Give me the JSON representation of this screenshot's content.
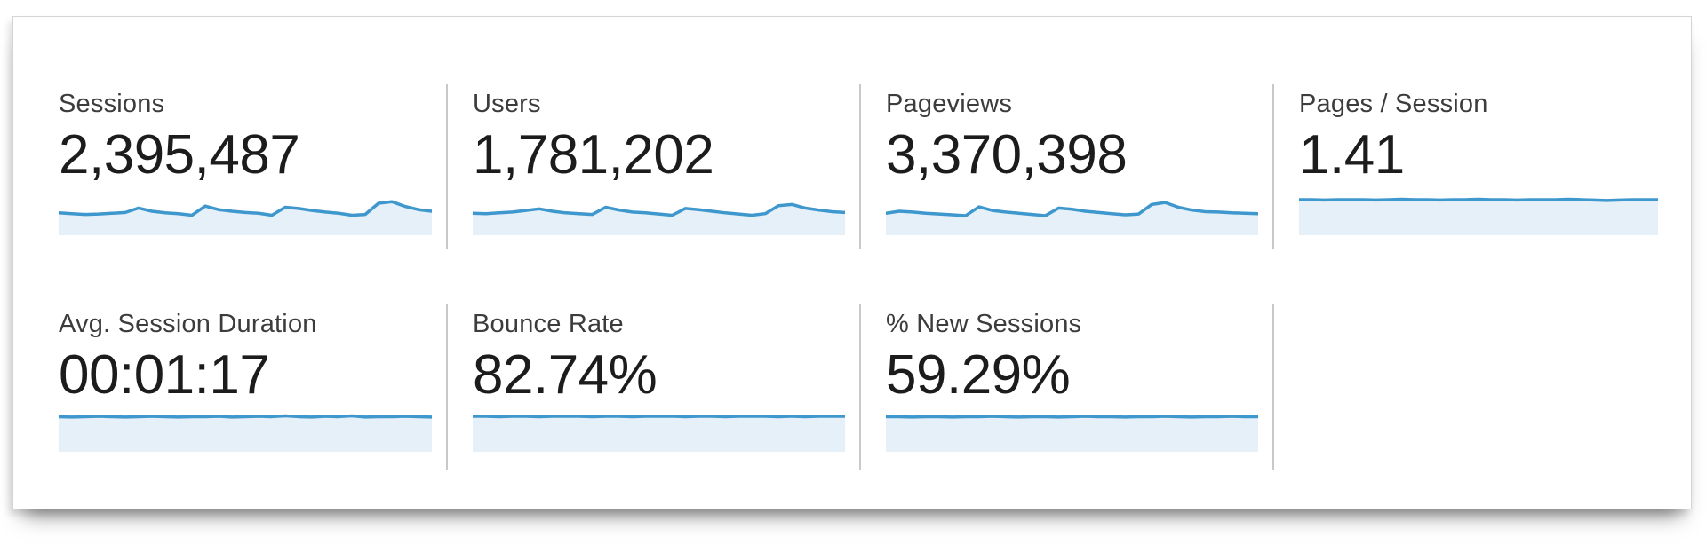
{
  "colors": {
    "spark_line": "#3e97cd",
    "spark_fill": "#e5f0f9",
    "divider": "#c7c9cb",
    "label_text": "#3c3c3c",
    "value_text": "#1c1c1c",
    "panel_background": "#ffffff",
    "panel_border": "#d4d4d4"
  },
  "metrics": [
    {
      "label": "Sessions",
      "value": "2,395,487",
      "spark": [
        56,
        54,
        52,
        53,
        55,
        57,
        68,
        60,
        56,
        54,
        50,
        73,
        64,
        60,
        57,
        55,
        50,
        70,
        67,
        62,
        58,
        55,
        50,
        52,
        80,
        84,
        72,
        64,
        60
      ]
    },
    {
      "label": "Users",
      "value": "1,781,202",
      "spark": [
        55,
        54,
        56,
        58,
        62,
        66,
        60,
        56,
        54,
        52,
        70,
        63,
        58,
        56,
        53,
        50,
        67,
        64,
        60,
        56,
        53,
        50,
        54,
        74,
        77,
        68,
        63,
        59,
        57
      ]
    },
    {
      "label": "Pageviews",
      "value": "3,370,398",
      "spark": [
        55,
        60,
        58,
        55,
        53,
        51,
        49,
        71,
        62,
        58,
        55,
        52,
        49,
        68,
        65,
        60,
        57,
        54,
        51,
        53,
        77,
        82,
        70,
        63,
        59,
        58,
        56,
        55,
        54
      ]
    },
    {
      "label": "Pages / Session",
      "value": "1.41",
      "spark": [
        89,
        89,
        88,
        89,
        89,
        89,
        88,
        89,
        90,
        89,
        89,
        88,
        89,
        89,
        90,
        89,
        89,
        88,
        89,
        89,
        89,
        90,
        89,
        88,
        87,
        88,
        89,
        89,
        89
      ]
    },
    {
      "label": "Avg. Session Duration",
      "value": "00:01:17",
      "spark": [
        86,
        85,
        86,
        87,
        86,
        85,
        86,
        87,
        86,
        85,
        86,
        86,
        87,
        85,
        86,
        87,
        86,
        88,
        86,
        85,
        87,
        86,
        88,
        85,
        86,
        86,
        87,
        86,
        85
      ]
    },
    {
      "label": "Bounce Rate",
      "value": "82.74%",
      "spark": [
        87,
        87,
        86,
        87,
        87,
        86,
        87,
        87,
        87,
        86,
        87,
        87,
        86,
        87,
        87,
        87,
        86,
        87,
        87,
        86,
        87,
        87,
        87,
        86,
        87,
        86,
        87,
        87,
        87
      ]
    },
    {
      "label": "% New Sessions",
      "value": "59.29%",
      "spark": [
        86,
        86,
        85,
        86,
        86,
        85,
        86,
        86,
        87,
        86,
        85,
        86,
        86,
        85,
        86,
        87,
        86,
        86,
        85,
        86,
        86,
        87,
        86,
        85,
        86,
        86,
        87,
        86,
        86
      ]
    }
  ],
  "chart_data": [
    {
      "type": "area",
      "title": "Sessions",
      "headline_value": "2,395,487",
      "xlabel": "",
      "ylabel": "",
      "ylim": [
        0,
        100
      ],
      "grid": false,
      "legend": false,
      "note": "unlabeled sparkline; values are relative estimates 0-100",
      "values": [
        56,
        54,
        52,
        53,
        55,
        57,
        68,
        60,
        56,
        54,
        50,
        73,
        64,
        60,
        57,
        55,
        50,
        70,
        67,
        62,
        58,
        55,
        50,
        52,
        80,
        84,
        72,
        64,
        60
      ]
    },
    {
      "type": "area",
      "title": "Users",
      "headline_value": "1,781,202",
      "xlabel": "",
      "ylabel": "",
      "ylim": [
        0,
        100
      ],
      "grid": false,
      "legend": false,
      "note": "unlabeled sparkline; values are relative estimates 0-100",
      "values": [
        55,
        54,
        56,
        58,
        62,
        66,
        60,
        56,
        54,
        52,
        70,
        63,
        58,
        56,
        53,
        50,
        67,
        64,
        60,
        56,
        53,
        50,
        54,
        74,
        77,
        68,
        63,
        59,
        57
      ]
    },
    {
      "type": "area",
      "title": "Pageviews",
      "headline_value": "3,370,398",
      "xlabel": "",
      "ylabel": "",
      "ylim": [
        0,
        100
      ],
      "grid": false,
      "legend": false,
      "note": "unlabeled sparkline; values are relative estimates 0-100",
      "values": [
        55,
        60,
        58,
        55,
        53,
        51,
        49,
        71,
        62,
        58,
        55,
        52,
        49,
        68,
        65,
        60,
        57,
        54,
        51,
        53,
        77,
        82,
        70,
        63,
        59,
        58,
        56,
        55,
        54
      ]
    },
    {
      "type": "area",
      "title": "Pages / Session",
      "headline_value": "1.41",
      "xlabel": "",
      "ylabel": "",
      "ylim": [
        0,
        100
      ],
      "grid": false,
      "legend": false,
      "note": "nearly flat sparkline",
      "values": [
        89,
        89,
        88,
        89,
        89,
        89,
        88,
        89,
        90,
        89,
        89,
        88,
        89,
        89,
        90,
        89,
        89,
        88,
        89,
        89,
        89,
        90,
        89,
        88,
        87,
        88,
        89,
        89,
        89
      ]
    },
    {
      "type": "area",
      "title": "Avg. Session Duration",
      "headline_value": "00:01:17",
      "xlabel": "",
      "ylabel": "",
      "ylim": [
        0,
        100
      ],
      "grid": false,
      "legend": false,
      "note": "nearly flat sparkline",
      "values": [
        86,
        85,
        86,
        87,
        86,
        85,
        86,
        87,
        86,
        85,
        86,
        86,
        87,
        85,
        86,
        87,
        86,
        88,
        86,
        85,
        87,
        86,
        88,
        85,
        86,
        86,
        87,
        86,
        85
      ]
    },
    {
      "type": "area",
      "title": "Bounce Rate",
      "headline_value": "82.74%",
      "xlabel": "",
      "ylabel": "",
      "ylim": [
        0,
        100
      ],
      "grid": false,
      "legend": false,
      "note": "nearly flat sparkline",
      "values": [
        87,
        87,
        86,
        87,
        87,
        86,
        87,
        87,
        87,
        86,
        87,
        87,
        86,
        87,
        87,
        87,
        86,
        87,
        87,
        86,
        87,
        87,
        87,
        86,
        87,
        86,
        87,
        87,
        87
      ]
    },
    {
      "type": "area",
      "title": "% New Sessions",
      "headline_value": "59.29%",
      "xlabel": "",
      "ylabel": "",
      "ylim": [
        0,
        100
      ],
      "grid": false,
      "legend": false,
      "note": "nearly flat sparkline",
      "values": [
        86,
        86,
        85,
        86,
        86,
        85,
        86,
        86,
        87,
        86,
        85,
        86,
        86,
        85,
        86,
        87,
        86,
        86,
        85,
        86,
        86,
        87,
        86,
        85,
        86,
        86,
        87,
        86,
        86
      ]
    }
  ]
}
